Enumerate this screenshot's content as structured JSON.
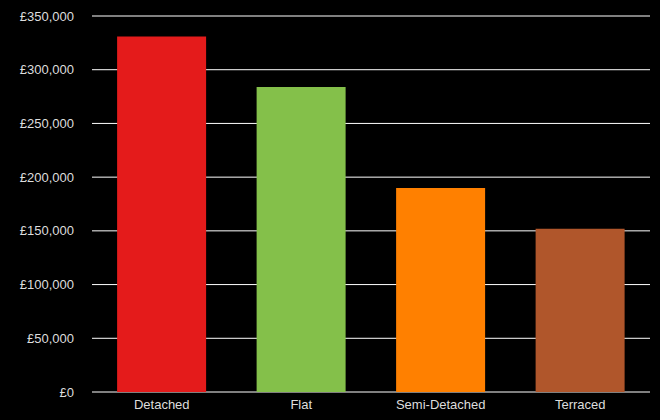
{
  "chart_data": {
    "type": "bar",
    "categories": [
      "Detached",
      "Flat",
      "Semi-Detached",
      "Terraced"
    ],
    "values": [
      331000,
      284000,
      190000,
      152000
    ],
    "colors": [
      "#e41b1b",
      "#84c04a",
      "#ff8000",
      "#b0562b"
    ],
    "ylim": [
      0,
      350000
    ],
    "yticks": [
      {
        "value": 0,
        "label": "£0"
      },
      {
        "value": 50000,
        "label": "£50,000"
      },
      {
        "value": 100000,
        "label": "£100,000"
      },
      {
        "value": 150000,
        "label": "£150,000"
      },
      {
        "value": 200000,
        "label": "£200,000"
      },
      {
        "value": 250000,
        "label": "£250,000"
      },
      {
        "value": 300000,
        "label": "£300,000"
      },
      {
        "value": 350000,
        "label": "£350,000"
      }
    ],
    "grid": true
  }
}
